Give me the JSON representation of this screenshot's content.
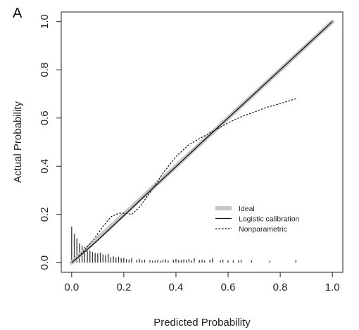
{
  "panel_label": "A",
  "chart_data": {
    "type": "line",
    "xlabel": "Predicted Probability",
    "ylabel": "Actual Probability",
    "xlim": [
      -0.04,
      1.04
    ],
    "ylim": [
      -0.04,
      1.04
    ],
    "x_ticks": [
      0.0,
      0.2,
      0.4,
      0.6,
      0.8,
      1.0
    ],
    "y_ticks": [
      0.0,
      0.2,
      0.4,
      0.6,
      0.8,
      1.0
    ],
    "x_tick_labels": [
      "0.0",
      "0.2",
      "0.4",
      "0.6",
      "0.8",
      "1.0"
    ],
    "y_tick_labels": [
      "0.0",
      "0.2",
      "0.4",
      "0.6",
      "0.8",
      "1.0"
    ],
    "grid": false,
    "legend_position": "bottom-right",
    "legend": [
      {
        "label": "Ideal",
        "style": "thick-light-gray"
      },
      {
        "label": "Logistic calibration",
        "style": "solid"
      },
      {
        "label": "Nonparametric",
        "style": "dotted"
      }
    ],
    "series": [
      {
        "name": "Ideal",
        "color": "#c8c8c8",
        "x": [
          0.0,
          1.0
        ],
        "y": [
          0.0,
          1.0
        ]
      },
      {
        "name": "Logistic calibration",
        "color": "#111111",
        "x": [
          0.0,
          0.05,
          0.1,
          0.2,
          0.3,
          0.4,
          0.5,
          0.6,
          0.7,
          0.8,
          0.9,
          1.0
        ],
        "y": [
          0.0,
          0.045,
          0.093,
          0.195,
          0.297,
          0.398,
          0.5,
          0.6,
          0.7,
          0.8,
          0.9,
          1.0
        ]
      },
      {
        "name": "Nonparametric",
        "color": "#111111",
        "x": [
          0.0,
          0.04,
          0.08,
          0.12,
          0.15,
          0.18,
          0.21,
          0.23,
          0.26,
          0.3,
          0.35,
          0.4,
          0.45,
          0.5,
          0.55,
          0.6,
          0.65,
          0.7,
          0.75,
          0.8,
          0.86
        ],
        "y": [
          0.0,
          0.04,
          0.09,
          0.15,
          0.19,
          0.205,
          0.205,
          0.2,
          0.23,
          0.29,
          0.37,
          0.44,
          0.49,
          0.52,
          0.55,
          0.58,
          0.605,
          0.625,
          0.645,
          0.66,
          0.68
        ]
      }
    ],
    "spike_histogram": {
      "x": [
        0.0,
        0.01,
        0.02,
        0.03,
        0.04,
        0.05,
        0.06,
        0.07,
        0.08,
        0.09,
        0.1,
        0.11,
        0.12,
        0.13,
        0.14,
        0.15,
        0.16,
        0.17,
        0.18,
        0.19,
        0.2,
        0.21,
        0.22,
        0.23,
        0.25,
        0.26,
        0.27,
        0.28,
        0.3,
        0.31,
        0.32,
        0.33,
        0.34,
        0.35,
        0.36,
        0.37,
        0.39,
        0.4,
        0.41,
        0.42,
        0.43,
        0.44,
        0.45,
        0.46,
        0.47,
        0.49,
        0.5,
        0.51,
        0.53,
        0.54,
        0.57,
        0.58,
        0.6,
        0.62,
        0.64,
        0.65,
        0.69,
        0.76,
        0.86
      ],
      "heights": [
        0.15,
        0.12,
        0.1,
        0.08,
        0.07,
        0.065,
        0.058,
        0.05,
        0.045,
        0.04,
        0.038,
        0.042,
        0.034,
        0.03,
        0.036,
        0.022,
        0.026,
        0.02,
        0.025,
        0.018,
        0.02,
        0.015,
        0.013,
        0.018,
        0.012,
        0.016,
        0.01,
        0.012,
        0.01,
        0.008,
        0.009,
        0.011,
        0.008,
        0.012,
        0.014,
        0.009,
        0.012,
        0.016,
        0.01,
        0.012,
        0.014,
        0.011,
        0.016,
        0.009,
        0.018,
        0.01,
        0.012,
        0.009,
        0.012,
        0.018,
        0.009,
        0.012,
        0.009,
        0.01,
        0.009,
        0.012,
        0.009,
        0.008,
        0.01
      ]
    }
  }
}
